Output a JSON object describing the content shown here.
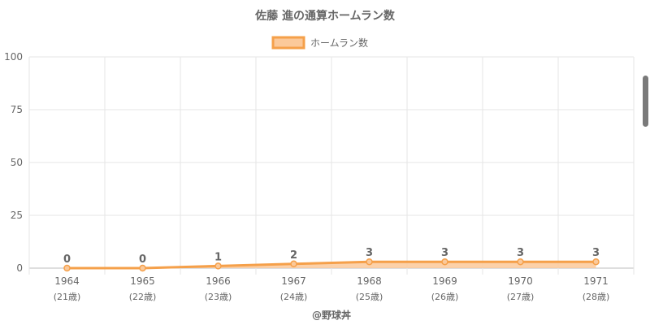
{
  "chart_data": {
    "type": "line",
    "title": "佐藤 進の通算ホームラン数",
    "legend": {
      "label": "ホームラン数",
      "position": "top"
    },
    "categories": [
      "1964",
      "1965",
      "1966",
      "1967",
      "1968",
      "1969",
      "1970",
      "1971"
    ],
    "sub_labels": [
      "(21歳)",
      "(22歳)",
      "(23歳)",
      "(24歳)",
      "(25歳)",
      "(26歳)",
      "(27歳)",
      "(28歳)"
    ],
    "series": [
      {
        "name": "ホームラン数",
        "values": [
          0,
          0,
          1,
          2,
          3,
          3,
          3,
          3
        ]
      }
    ],
    "yticks": [
      0,
      25,
      50,
      75,
      100
    ],
    "ylim": [
      0,
      100
    ],
    "grid": true,
    "filled_area": true,
    "point_labels": true,
    "credit": "@野球丼",
    "colors": {
      "line": "#f5a04a",
      "fill": "#fbc99a",
      "grid": "#e6e6e6",
      "axis_text": "#666666",
      "title_text": "#666666"
    }
  }
}
